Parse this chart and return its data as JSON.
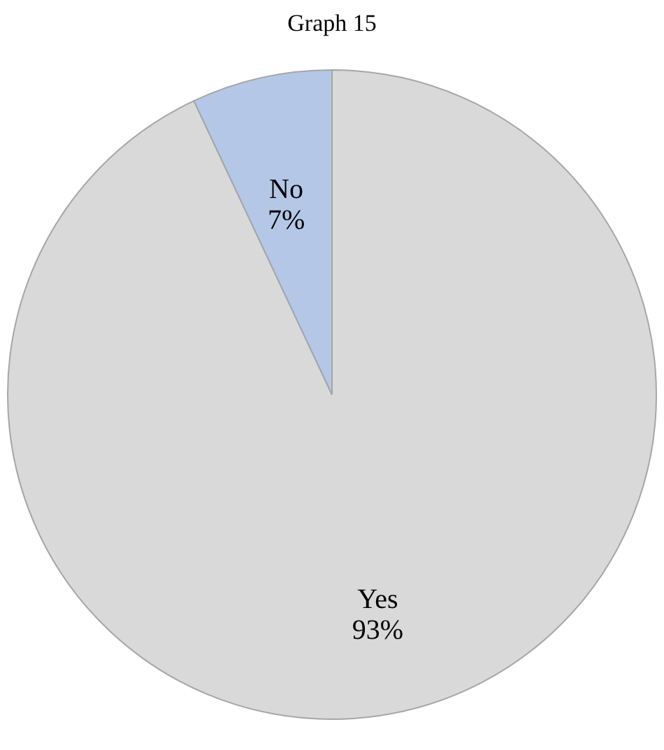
{
  "chart_data": {
    "type": "pie",
    "title": "Graph 15",
    "categories": [
      "Yes",
      "No"
    ],
    "values": [
      93,
      7
    ],
    "value_labels": [
      "93%",
      "7%"
    ],
    "colors": [
      "#d9d9d9",
      "#b4c7e7"
    ],
    "legend": false
  }
}
